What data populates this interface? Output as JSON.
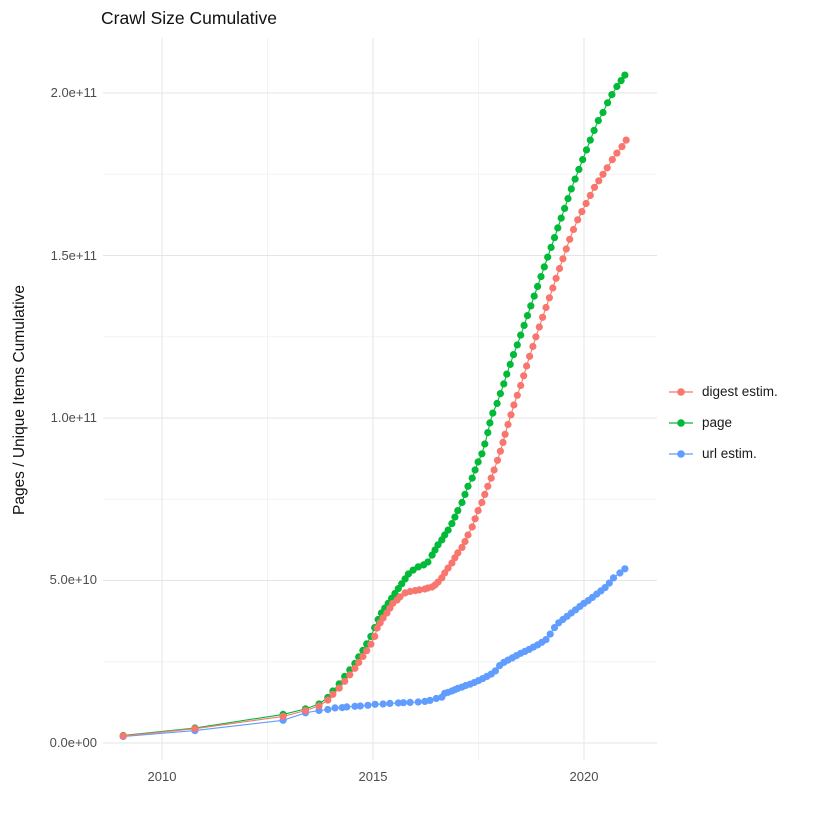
{
  "title": "Crawl Size Cumulative",
  "chart_data": {
    "type": "line",
    "title": "Crawl Size Cumulative",
    "xlabel": "",
    "ylabel": "Pages / Unique Items Cumulative",
    "values_unit": "billions of pages / unique items (1e9)",
    "xlim": [
      2008.6,
      2021.7
    ],
    "ylim_e9": [
      0,
      216
    ],
    "grid": true,
    "legend_position": "right",
    "x_ticks": [
      {
        "value": 2010,
        "label": "2010"
      },
      {
        "value": 2015,
        "label": "2015"
      },
      {
        "value": 2020,
        "label": "2020"
      }
    ],
    "x_minor": [
      2012.5,
      2017.5
    ],
    "y_ticks": [
      {
        "value_e9": 0,
        "label": "0.0e+00"
      },
      {
        "value_e9": 50,
        "label": "5.0e+10"
      },
      {
        "value_e9": 100,
        "label": "1.0e+11"
      },
      {
        "value_e9": 150,
        "label": "1.5e+11"
      },
      {
        "value_e9": 200,
        "label": "2.0e+11"
      }
    ],
    "y_minor_e9": [
      25,
      75,
      125,
      175
    ],
    "series": [
      {
        "name": "url estim.",
        "color": "#619CFF",
        "points": [
          [
            2009.08,
            2.0
          ],
          [
            2010.78,
            3.8
          ],
          [
            2012.87,
            7.0
          ],
          [
            2013.4,
            9.3
          ],
          [
            2013.72,
            10.0
          ],
          [
            2013.93,
            10.3
          ],
          [
            2014.1,
            10.8
          ],
          [
            2014.27,
            10.9
          ],
          [
            2014.38,
            11.1
          ],
          [
            2014.57,
            11.3
          ],
          [
            2014.7,
            11.4
          ],
          [
            2014.88,
            11.6
          ],
          [
            2015.05,
            11.9
          ],
          [
            2015.24,
            12.0
          ],
          [
            2015.4,
            12.2
          ],
          [
            2015.6,
            12.3
          ],
          [
            2015.72,
            12.4
          ],
          [
            2015.88,
            12.5
          ],
          [
            2016.07,
            12.6
          ],
          [
            2016.23,
            12.8
          ],
          [
            2016.35,
            13.1
          ],
          [
            2016.5,
            13.7
          ],
          [
            2016.63,
            14.1
          ],
          [
            2016.7,
            15.3
          ],
          [
            2016.78,
            15.6
          ],
          [
            2016.87,
            16.0
          ],
          [
            2016.94,
            16.4
          ],
          [
            2017.01,
            16.8
          ],
          [
            2017.11,
            17.2
          ],
          [
            2017.2,
            17.7
          ],
          [
            2017.3,
            18.1
          ],
          [
            2017.4,
            18.6
          ],
          [
            2017.5,
            19.2
          ],
          [
            2017.6,
            19.8
          ],
          [
            2017.7,
            20.5
          ],
          [
            2017.8,
            21.2
          ],
          [
            2017.9,
            22.2
          ],
          [
            2018.0,
            23.8
          ],
          [
            2018.1,
            24.8
          ],
          [
            2018.2,
            25.5
          ],
          [
            2018.3,
            26.2
          ],
          [
            2018.4,
            26.9
          ],
          [
            2018.5,
            27.6
          ],
          [
            2018.6,
            28.2
          ],
          [
            2018.7,
            28.8
          ],
          [
            2018.8,
            29.5
          ],
          [
            2018.9,
            30.2
          ],
          [
            2019.0,
            31.0
          ],
          [
            2019.1,
            31.8
          ],
          [
            2019.2,
            33.5
          ],
          [
            2019.3,
            35.5
          ],
          [
            2019.4,
            37.0
          ],
          [
            2019.5,
            38.0
          ],
          [
            2019.6,
            39.0
          ],
          [
            2019.7,
            40.0
          ],
          [
            2019.8,
            41.0
          ],
          [
            2019.9,
            42.0
          ],
          [
            2020.0,
            43.0
          ],
          [
            2020.1,
            43.8
          ],
          [
            2020.2,
            44.8
          ],
          [
            2020.3,
            45.8
          ],
          [
            2020.4,
            46.8
          ],
          [
            2020.5,
            47.8
          ],
          [
            2020.6,
            49.2
          ],
          [
            2020.7,
            50.8
          ],
          [
            2020.85,
            52.3
          ],
          [
            2020.97,
            53.6
          ]
        ]
      },
      {
        "name": "page",
        "color": "#00BA38",
        "points": [
          [
            2009.08,
            2.3
          ],
          [
            2010.78,
            4.6
          ],
          [
            2012.87,
            8.8
          ],
          [
            2013.4,
            10.5
          ],
          [
            2013.72,
            12.0
          ],
          [
            2013.93,
            14.0
          ],
          [
            2014.05,
            16.0
          ],
          [
            2014.2,
            18.2
          ],
          [
            2014.33,
            20.5
          ],
          [
            2014.45,
            22.5
          ],
          [
            2014.57,
            24.5
          ],
          [
            2014.66,
            26.5
          ],
          [
            2014.76,
            28.5
          ],
          [
            2014.85,
            30.5
          ],
          [
            2014.95,
            32.8
          ],
          [
            2015.04,
            35.5
          ],
          [
            2015.12,
            38.0
          ],
          [
            2015.2,
            40.0
          ],
          [
            2015.28,
            41.5
          ],
          [
            2015.36,
            43.0
          ],
          [
            2015.44,
            44.5
          ],
          [
            2015.52,
            46.0
          ],
          [
            2015.6,
            47.5
          ],
          [
            2015.68,
            49.0
          ],
          [
            2015.76,
            50.5
          ],
          [
            2015.84,
            52.0
          ],
          [
            2015.95,
            53.2
          ],
          [
            2016.07,
            54.2
          ],
          [
            2016.2,
            54.8
          ],
          [
            2016.3,
            55.7
          ],
          [
            2016.4,
            57.8
          ],
          [
            2016.47,
            59.4
          ],
          [
            2016.54,
            61.0
          ],
          [
            2016.63,
            62.5
          ],
          [
            2016.7,
            64.0
          ],
          [
            2016.78,
            65.5
          ],
          [
            2016.87,
            67.5
          ],
          [
            2016.94,
            69.5
          ],
          [
            2017.01,
            71.5
          ],
          [
            2017.11,
            74.0
          ],
          [
            2017.18,
            76.5
          ],
          [
            2017.25,
            79.0
          ],
          [
            2017.35,
            81.5
          ],
          [
            2017.42,
            84.0
          ],
          [
            2017.49,
            86.5
          ],
          [
            2017.58,
            89.0
          ],
          [
            2017.65,
            92.0
          ],
          [
            2017.72,
            95.5
          ],
          [
            2017.77,
            98.5
          ],
          [
            2017.84,
            101.5
          ],
          [
            2017.94,
            104.5
          ],
          [
            2018.02,
            107.5
          ],
          [
            2018.1,
            110.5
          ],
          [
            2018.17,
            113.5
          ],
          [
            2018.25,
            116.5
          ],
          [
            2018.33,
            119.5
          ],
          [
            2018.42,
            122.5
          ],
          [
            2018.5,
            125.5
          ],
          [
            2018.58,
            128.5
          ],
          [
            2018.66,
            131.5
          ],
          [
            2018.74,
            134.5
          ],
          [
            2018.82,
            137.5
          ],
          [
            2018.9,
            140.5
          ],
          [
            2018.98,
            143.5
          ],
          [
            2019.06,
            146.5
          ],
          [
            2019.14,
            149.5
          ],
          [
            2019.22,
            152.5
          ],
          [
            2019.3,
            155.5
          ],
          [
            2019.38,
            158.5
          ],
          [
            2019.46,
            161.5
          ],
          [
            2019.54,
            164.5
          ],
          [
            2019.62,
            167.5
          ],
          [
            2019.7,
            170.5
          ],
          [
            2019.79,
            173.5
          ],
          [
            2019.88,
            176.5
          ],
          [
            2019.97,
            179.5
          ],
          [
            2020.06,
            182.5
          ],
          [
            2020.15,
            185.5
          ],
          [
            2020.24,
            188.5
          ],
          [
            2020.34,
            191.5
          ],
          [
            2020.45,
            194.0
          ],
          [
            2020.56,
            197.0
          ],
          [
            2020.66,
            199.5
          ],
          [
            2020.78,
            202.0
          ],
          [
            2020.88,
            203.8
          ],
          [
            2020.97,
            205.5
          ]
        ]
      },
      {
        "name": "digest estim.",
        "color": "#F8766D",
        "points": [
          [
            2009.08,
            2.2
          ],
          [
            2010.78,
            4.4
          ],
          [
            2012.87,
            8.2
          ],
          [
            2013.4,
            10.0
          ],
          [
            2013.72,
            11.4
          ],
          [
            2013.93,
            13.2
          ],
          [
            2014.05,
            15.0
          ],
          [
            2014.2,
            16.9
          ],
          [
            2014.33,
            19.0
          ],
          [
            2014.45,
            21.0
          ],
          [
            2014.57,
            23.0
          ],
          [
            2014.66,
            24.8
          ],
          [
            2014.76,
            26.6
          ],
          [
            2014.85,
            28.4
          ],
          [
            2014.95,
            30.4
          ],
          [
            2015.04,
            32.8
          ],
          [
            2015.1,
            35.4
          ],
          [
            2015.17,
            37.0
          ],
          [
            2015.24,
            38.5
          ],
          [
            2015.33,
            40.0
          ],
          [
            2015.4,
            41.5
          ],
          [
            2015.47,
            43.0
          ],
          [
            2015.57,
            44.0
          ],
          [
            2015.64,
            45.0
          ],
          [
            2015.76,
            46.2
          ],
          [
            2015.88,
            46.6
          ],
          [
            2016.0,
            46.9
          ],
          [
            2016.1,
            47.1
          ],
          [
            2016.23,
            47.4
          ],
          [
            2016.3,
            47.7
          ],
          [
            2016.4,
            48.0
          ],
          [
            2016.47,
            48.6
          ],
          [
            2016.54,
            49.5
          ],
          [
            2016.63,
            50.8
          ],
          [
            2016.7,
            52.3
          ],
          [
            2016.78,
            53.8
          ],
          [
            2016.87,
            55.4
          ],
          [
            2016.94,
            57.0
          ],
          [
            2017.01,
            58.5
          ],
          [
            2017.11,
            60.2
          ],
          [
            2017.18,
            62.0
          ],
          [
            2017.25,
            64.0
          ],
          [
            2017.35,
            66.5
          ],
          [
            2017.42,
            69.0
          ],
          [
            2017.49,
            71.5
          ],
          [
            2017.58,
            74.0
          ],
          [
            2017.65,
            76.5
          ],
          [
            2017.72,
            79.0
          ],
          [
            2017.8,
            81.5
          ],
          [
            2017.87,
            84.0
          ],
          [
            2017.95,
            87.0
          ],
          [
            2018.02,
            89.8
          ],
          [
            2018.08,
            92.5
          ],
          [
            2018.13,
            95.0
          ],
          [
            2018.2,
            98.0
          ],
          [
            2018.27,
            101.0
          ],
          [
            2018.34,
            104.0
          ],
          [
            2018.42,
            107.0
          ],
          [
            2018.5,
            110.0
          ],
          [
            2018.57,
            113.0
          ],
          [
            2018.64,
            116.0
          ],
          [
            2018.71,
            119.0
          ],
          [
            2018.79,
            122.0
          ],
          [
            2018.86,
            125.0
          ],
          [
            2018.94,
            128.0
          ],
          [
            2019.02,
            131.0
          ],
          [
            2019.1,
            134.0
          ],
          [
            2019.18,
            137.0
          ],
          [
            2019.26,
            140.0
          ],
          [
            2019.34,
            143.0
          ],
          [
            2019.42,
            146.0
          ],
          [
            2019.5,
            149.0
          ],
          [
            2019.58,
            152.0
          ],
          [
            2019.66,
            155.0
          ],
          [
            2019.75,
            158.0
          ],
          [
            2019.85,
            161.0
          ],
          [
            2019.95,
            163.5
          ],
          [
            2020.05,
            166.0
          ],
          [
            2020.15,
            168.5
          ],
          [
            2020.25,
            171.0
          ],
          [
            2020.35,
            173.0
          ],
          [
            2020.45,
            175.0
          ],
          [
            2020.55,
            177.0
          ],
          [
            2020.67,
            179.5
          ],
          [
            2020.78,
            181.5
          ],
          [
            2020.9,
            183.5
          ],
          [
            2021.0,
            185.5
          ]
        ]
      }
    ],
    "legend_order": [
      "digest estim.",
      "page",
      "url estim."
    ]
  }
}
